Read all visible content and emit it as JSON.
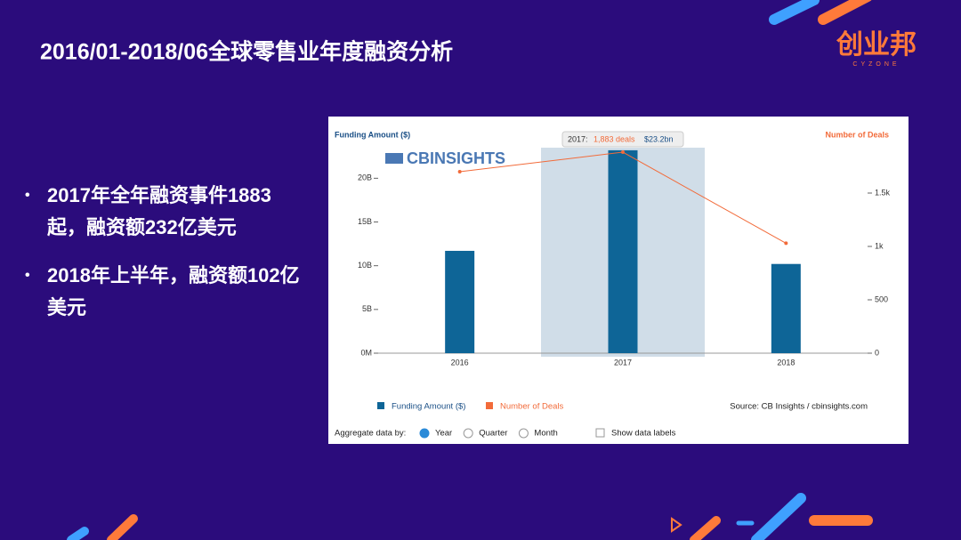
{
  "slide": {
    "title": "2016/01-2018/06全球零售业年度融资分析",
    "logo": "创业邦",
    "logo_sub": "CYZONE",
    "bullets": [
      "2017年全年融资事件1883起，融资额232亿美元",
      "2018年上半年，融资额102亿美元"
    ]
  },
  "chart_data": {
    "type": "bar",
    "brand": "CBINSIGHTS",
    "y_label": "Funding Amount ($)",
    "y2_label": "Number of Deals",
    "categories": [
      "2016",
      "2017",
      "2018"
    ],
    "series": [
      {
        "name": "Funding Amount ($)",
        "color": "#0e6597",
        "type": "bar",
        "values": [
          11.7,
          23.2,
          10.2
        ]
      },
      {
        "name": "Number of Deals",
        "color": "#f26b3a",
        "type": "line",
        "axis": "y2",
        "values": [
          1700,
          1883,
          1030
        ]
      }
    ],
    "ylim": [
      0,
      23.8
    ],
    "yticks": [
      {
        "value": 0,
        "label": "0M"
      },
      {
        "value": 5,
        "label": "5B"
      },
      {
        "value": 10,
        "label": "10B"
      },
      {
        "value": 15,
        "label": "15B"
      },
      {
        "value": 20,
        "label": "20B"
      }
    ],
    "y2lim": [
      0,
      1950
    ],
    "y2ticks": [
      0,
      500,
      {
        "value": 1000,
        "label": "1k"
      },
      {
        "value": 1500,
        "label": "1.5k"
      }
    ],
    "tooltip": {
      "label": "2017:",
      "deals": "1,883 deals",
      "amount": "$23.2bn"
    },
    "source": "Source: CB Insights / cbinsights.com",
    "controls": {
      "aggregate": "Aggregate data by:",
      "options": [
        "Year",
        "Quarter",
        "Month"
      ],
      "data_labels": "Show data labels"
    }
  }
}
